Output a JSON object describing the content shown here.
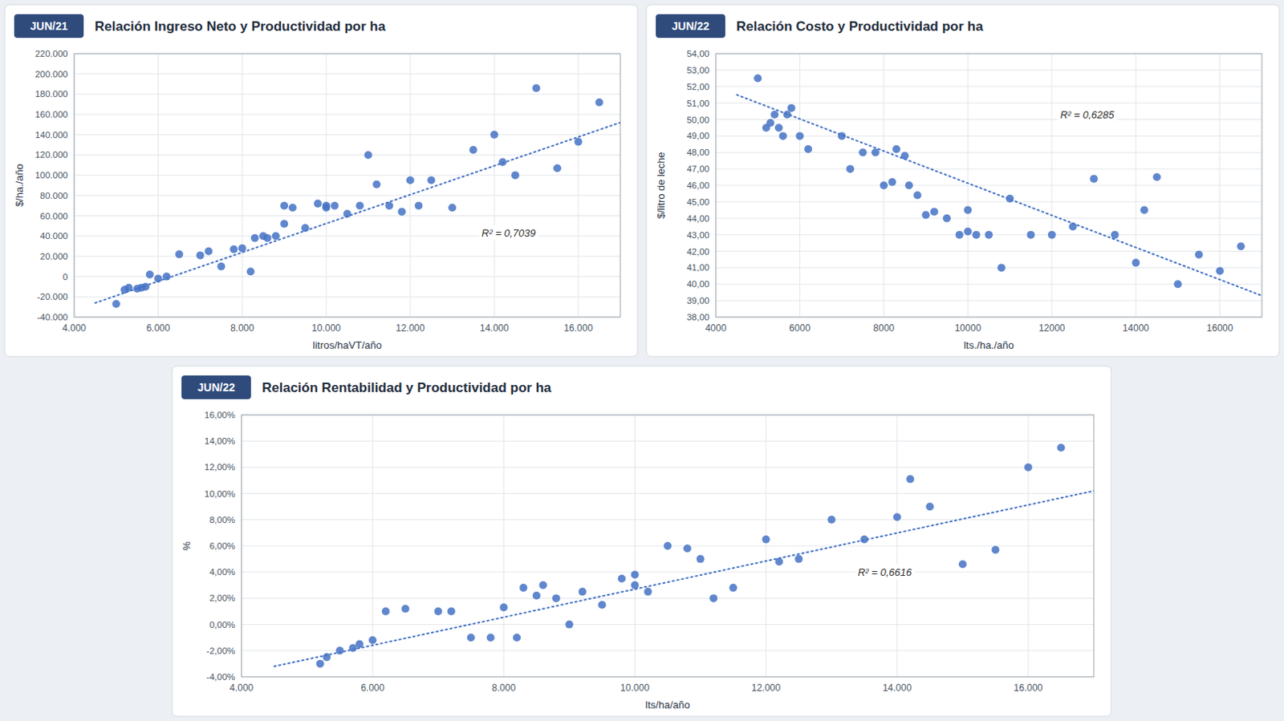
{
  "chart_data": [
    {
      "type": "scatter",
      "subtitle": "JUN/21",
      "title": "Relación Ingreso Neto y Productividad por ha",
      "xlabel": "litros/haVT/año",
      "ylabel": "$/ha./año",
      "xlim": [
        4000,
        17000
      ],
      "ylim": [
        -40000,
        220000
      ],
      "xticks": [
        {
          "value": 4000,
          "label": "4.000"
        },
        {
          "value": 6000,
          "label": "6.000"
        },
        {
          "value": 8000,
          "label": "8.000"
        },
        {
          "value": 10000,
          "label": "10.000"
        },
        {
          "value": 12000,
          "label": "12.000"
        },
        {
          "value": 14000,
          "label": "14.000"
        },
        {
          "value": 16000,
          "label": "16.000"
        }
      ],
      "yticks": [
        {
          "value": -40000,
          "label": "-40.000"
        },
        {
          "value": -20000,
          "label": "-20.000"
        },
        0,
        {
          "value": 20000,
          "label": "20.000"
        },
        {
          "value": 40000,
          "label": "40.000"
        },
        {
          "value": 60000,
          "label": "60.000"
        },
        {
          "value": 80000,
          "label": "80.000"
        },
        {
          "value": 100000,
          "label": "100.000"
        },
        {
          "value": 120000,
          "label": "120.000"
        },
        {
          "value": 140000,
          "label": "140.000"
        },
        {
          "value": 160000,
          "label": "160.000"
        },
        {
          "value": 180000,
          "label": "180.000"
        },
        {
          "value": 200000,
          "label": "200.000"
        },
        {
          "value": 220000,
          "label": "220.000"
        }
      ],
      "grid": true,
      "series": [
        {
          "type": "scatter",
          "color": "#4472c4",
          "marker": "circle",
          "x": [
            5000,
            5200,
            5300,
            5500,
            5600,
            5700,
            5800,
            6000,
            6200,
            6500,
            7000,
            7200,
            7500,
            7800,
            8000,
            8200,
            8300,
            8500,
            8600,
            8800,
            9000,
            9000,
            9200,
            9500,
            9800,
            10000,
            10000,
            10200,
            10500,
            10800,
            11000,
            11200,
            11500,
            11800,
            12000,
            12200,
            12500,
            13000,
            13500,
            14000,
            14200,
            14500,
            15000,
            15500,
            16000,
            16500
          ],
          "values": [
            -27000,
            -13000,
            -11000,
            -12000,
            -11000,
            -10000,
            2000,
            -2000,
            0,
            22000,
            21000,
            25000,
            10000,
            27000,
            28000,
            5000,
            38000,
            40000,
            38000,
            40000,
            52000,
            70000,
            68000,
            48000,
            72000,
            70000,
            68000,
            70000,
            62000,
            70000,
            120000,
            91000,
            70000,
            64000,
            95000,
            70000,
            95000,
            68000,
            125000,
            140000,
            113000,
            100000,
            186000,
            107000,
            133000,
            172000
          ]
        },
        {
          "type": "line",
          "color": "#4472c4",
          "line_style": "dotted",
          "x": [
            4500,
            17000
          ],
          "values": [
            -26000,
            152000
          ]
        }
      ],
      "annotations": [
        {
          "text": "R² = 0,7039",
          "x": 13700,
          "y": 43000
        }
      ]
    },
    {
      "type": "scatter",
      "subtitle": "JUN/22",
      "title": "Relación Costo y Productividad por ha",
      "xlabel": "lts./ha./año",
      "ylabel": "$/litro de leche",
      "xlim": [
        4000,
        17000
      ],
      "ylim": [
        38,
        54
      ],
      "xticks": [
        4000,
        6000,
        8000,
        10000,
        12000,
        14000,
        16000
      ],
      "yticks": [
        {
          "value": 38,
          "label": "38,00"
        },
        {
          "value": 39,
          "label": "39,00"
        },
        {
          "value": 40,
          "label": "40,00"
        },
        {
          "value": 41,
          "label": "41,00"
        },
        {
          "value": 42,
          "label": "42,00"
        },
        {
          "value": 43,
          "label": "43,00"
        },
        {
          "value": 44,
          "label": "44,00"
        },
        {
          "value": 45,
          "label": "45,00"
        },
        {
          "value": 46,
          "label": "46,00"
        },
        {
          "value": 47,
          "label": "47,00"
        },
        {
          "value": 48,
          "label": "48,00"
        },
        {
          "value": 49,
          "label": "49,00"
        },
        {
          "value": 50,
          "label": "50,00"
        },
        {
          "value": 51,
          "label": "51,00"
        },
        {
          "value": 52,
          "label": "52,00"
        },
        {
          "value": 53,
          "label": "53,00"
        },
        {
          "value": 54,
          "label": "54,00"
        }
      ],
      "grid": true,
      "series": [
        {
          "type": "scatter",
          "color": "#4472c4",
          "marker": "circle",
          "x": [
            5000,
            5200,
            5300,
            5400,
            5500,
            5600,
            5700,
            5800,
            6000,
            6200,
            7000,
            7200,
            7500,
            7800,
            8000,
            8200,
            8300,
            8500,
            8600,
            8800,
            9000,
            9200,
            9500,
            9800,
            10000,
            10000,
            10200,
            10500,
            10800,
            11000,
            11500,
            12000,
            12500,
            13000,
            13500,
            14000,
            14200,
            14500,
            15000,
            15500,
            16000,
            16500
          ],
          "values": [
            52.5,
            49.5,
            49.8,
            50.3,
            49.5,
            49.0,
            50.3,
            50.7,
            49.0,
            48.2,
            49.0,
            47.0,
            48.0,
            48.0,
            46.0,
            46.2,
            48.2,
            47.8,
            46.0,
            45.4,
            44.2,
            44.4,
            44.0,
            43.0,
            43.2,
            44.5,
            43.0,
            43.0,
            41.0,
            45.2,
            43.0,
            43.0,
            43.5,
            46.4,
            43.0,
            41.3,
            44.5,
            46.5,
            40.0,
            41.8,
            40.8,
            42.3
          ]
        },
        {
          "type": "line",
          "color": "#4472c4",
          "line_style": "dotted",
          "x": [
            4500,
            17000
          ],
          "values": [
            51.5,
            39.3
          ]
        }
      ],
      "annotations": [
        {
          "text": "R² = 0,6285",
          "x": 12200,
          "y": 50.3
        }
      ]
    },
    {
      "type": "scatter",
      "subtitle": "JUN/22",
      "title": "Relación Rentabilidad y Productividad por ha",
      "xlabel": "lts/ha/año",
      "ylabel": "%",
      "xlim": [
        4000,
        17000
      ],
      "ylim": [
        -0.04,
        0.16
      ],
      "xticks": [
        {
          "value": 4000,
          "label": "4.000"
        },
        {
          "value": 6000,
          "label": "6.000"
        },
        {
          "value": 8000,
          "label": "8.000"
        },
        {
          "value": 10000,
          "label": "10.000"
        },
        {
          "value": 12000,
          "label": "12.000"
        },
        {
          "value": 14000,
          "label": "14.000"
        },
        {
          "value": 16000,
          "label": "16.000"
        }
      ],
      "yticks": [
        {
          "value": -0.04,
          "label": "-4,00%"
        },
        {
          "value": -0.02,
          "label": "-2,00%"
        },
        {
          "value": 0.0,
          "label": "0,00%"
        },
        {
          "value": 0.02,
          "label": "2,00%"
        },
        {
          "value": 0.04,
          "label": "4,00%"
        },
        {
          "value": 0.06,
          "label": "6,00%"
        },
        {
          "value": 0.08,
          "label": "8,00%"
        },
        {
          "value": 0.1,
          "label": "10,00%"
        },
        {
          "value": 0.12,
          "label": "12,00%"
        },
        {
          "value": 0.14,
          "label": "14,00%"
        },
        {
          "value": 0.16,
          "label": "16,00%"
        }
      ],
      "grid": true,
      "series": [
        {
          "type": "scatter",
          "color": "#4472c4",
          "marker": "circle",
          "x": [
            5200,
            5300,
            5500,
            5700,
            5800,
            6000,
            6200,
            6500,
            7000,
            7200,
            7500,
            7800,
            8000,
            8200,
            8300,
            8500,
            8600,
            8800,
            9000,
            9200,
            9500,
            9800,
            10000,
            10000,
            10200,
            10500,
            10800,
            11000,
            11200,
            11500,
            12000,
            12200,
            12500,
            13000,
            13500,
            14000,
            14200,
            14500,
            15000,
            15500,
            16000,
            16500
          ],
          "values": [
            -0.03,
            -0.025,
            -0.02,
            -0.018,
            -0.015,
            -0.012,
            0.01,
            0.012,
            0.01,
            0.01,
            -0.01,
            -0.01,
            0.013,
            -0.01,
            0.028,
            0.022,
            0.03,
            0.02,
            0.0,
            0.025,
            0.015,
            0.035,
            0.038,
            0.03,
            0.025,
            0.06,
            0.058,
            0.05,
            0.02,
            0.028,
            0.065,
            0.048,
            0.05,
            0.08,
            0.065,
            0.082,
            0.111,
            0.09,
            0.046,
            0.057,
            0.12,
            0.135
          ]
        },
        {
          "type": "line",
          "color": "#4472c4",
          "line_style": "dotted",
          "x": [
            4500,
            17000
          ],
          "values": [
            -0.032,
            0.102
          ]
        }
      ],
      "annotations": [
        {
          "text": "R² = 0,6616",
          "x": 13400,
          "y": 0.04
        }
      ]
    }
  ]
}
